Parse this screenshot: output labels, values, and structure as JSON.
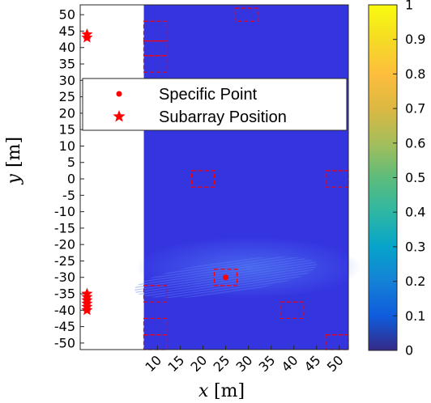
{
  "chart_data": {
    "type": "heatmap",
    "xlabel_var": "x",
    "xlabel_unit": "[m]",
    "ylabel_var": "y",
    "ylabel_unit": "[m]",
    "xlim": [
      -7,
      52
    ],
    "ylim": [
      -52,
      53
    ],
    "xticks": [
      10,
      15,
      20,
      25,
      30,
      35,
      40,
      45,
      50
    ],
    "yticks": [
      50,
      45,
      40,
      35,
      30,
      25,
      20,
      15,
      10,
      5,
      0,
      -5,
      -10,
      -15,
      -20,
      -25,
      -30,
      -35,
      -40,
      -45,
      -50
    ],
    "data_region_x": [
      7,
      52
    ],
    "background_value": 0.05,
    "colorbar": {
      "min": 0,
      "max": 1,
      "ticks": [
        0,
        0.1,
        0.2,
        0.3,
        0.4,
        0.5,
        0.6,
        0.7,
        0.8,
        0.9,
        1
      ],
      "colormap": "parula"
    },
    "dashed_boxes_color": "#ff0000",
    "dashed_boxes": [
      {
        "x": [
          7,
          12
        ],
        "y": [
          42,
          48
        ]
      },
      {
        "x": [
          7,
          12
        ],
        "y": [
          37.5,
          42
        ]
      },
      {
        "x": [
          7,
          12
        ],
        "y": [
          32.5,
          37.5
        ]
      },
      {
        "x": [
          27,
          32
        ],
        "y": [
          48,
          52
        ]
      },
      {
        "x": [
          17.5,
          22.5
        ],
        "y": [
          -2.5,
          2.5
        ]
      },
      {
        "x": [
          47,
          52
        ],
        "y": [
          -2.5,
          2.5
        ]
      },
      {
        "x": [
          22.5,
          27.5
        ],
        "y": [
          -32.5,
          -27.5
        ]
      },
      {
        "x": [
          7,
          12
        ],
        "y": [
          -37.5,
          -32.5
        ]
      },
      {
        "x": [
          37,
          42
        ],
        "y": [
          -42.5,
          -37.5
        ]
      },
      {
        "x": [
          7,
          12
        ],
        "y": [
          -47.5,
          -42.5
        ]
      },
      {
        "x": [
          7,
          12
        ],
        "y": [
          -52,
          -47.5
        ]
      },
      {
        "x": [
          47,
          52
        ],
        "y": [
          -52,
          -47.5
        ]
      }
    ],
    "specific_point": {
      "x": 25,
      "y": -30
    },
    "subarray_positions": [
      {
        "x": -5.5,
        "y": 44
      },
      {
        "x": -5.5,
        "y": 43
      },
      {
        "x": -5.5,
        "y": -35
      },
      {
        "x": -5.5,
        "y": -36
      },
      {
        "x": -5.5,
        "y": -37
      },
      {
        "x": -5.5,
        "y": -38
      },
      {
        "x": -5.5,
        "y": -39
      },
      {
        "x": -5.5,
        "y": -40
      }
    ],
    "legend": {
      "position": "upper-left",
      "entries": [
        "Specific Point",
        "Subarray Position"
      ]
    }
  }
}
